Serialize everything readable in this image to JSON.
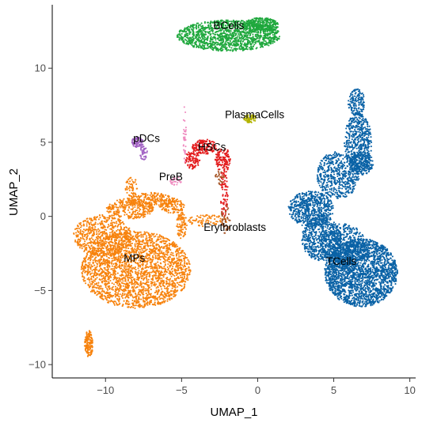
{
  "chart_data": {
    "type": "scatter",
    "title": "",
    "xlabel": "UMAP_1",
    "ylabel": "UMAP_2",
    "xlim": [
      -13.5,
      10.8
    ],
    "ylim": [
      -10.9,
      14.6
    ],
    "x_ticks": [
      -10,
      -5,
      0,
      5,
      10
    ],
    "y_ticks": [
      -10,
      -5,
      0,
      5,
      10
    ],
    "x_tick_labels": [
      "−10",
      "−5",
      "0",
      "5",
      "10"
    ],
    "y_tick_labels": [
      "−10",
      "−5",
      "0",
      "5",
      "10"
    ],
    "grid": false,
    "legend": "none",
    "series": [
      {
        "label_text": "BCells",
        "color": "#1fa83d",
        "label_pos": [
          -1.9,
          12.9
        ],
        "regions": [
          {
            "cx": -1.9,
            "cy": 12.2,
            "rx": 3.4,
            "ry": 1.05,
            "n": 1300
          },
          {
            "cx": 0.2,
            "cy": 12.9,
            "rx": 1.2,
            "ry": 0.5,
            "n": 300
          }
        ]
      },
      {
        "label_text": "TCells",
        "color": "#0a62a6",
        "label_pos": [
          5.5,
          -3.0
        ],
        "regions": [
          {
            "cx": 6.5,
            "cy": 7.7,
            "rx": 0.55,
            "ry": 0.9,
            "n": 150
          },
          {
            "cx": 6.6,
            "cy": 5.0,
            "rx": 0.9,
            "ry": 2.0,
            "n": 500
          },
          {
            "cx": 5.3,
            "cy": 2.8,
            "rx": 1.4,
            "ry": 1.6,
            "n": 550
          },
          {
            "cx": 6.8,
            "cy": 3.6,
            "rx": 0.8,
            "ry": 0.8,
            "n": 200
          },
          {
            "cx": 3.5,
            "cy": 0.5,
            "rx": 1.5,
            "ry": 1.2,
            "n": 600
          },
          {
            "cx": 4.2,
            "cy": -1.5,
            "rx": 1.3,
            "ry": 1.5,
            "n": 600
          },
          {
            "cx": 6.8,
            "cy": -3.8,
            "rx": 2.4,
            "ry": 2.3,
            "n": 2200
          },
          {
            "cx": 5.6,
            "cy": -2.0,
            "rx": 1.5,
            "ry": 1.5,
            "n": 500
          }
        ]
      },
      {
        "label_text": "MPs",
        "color": "#f7830e",
        "label_pos": [
          -8.1,
          -2.8
        ],
        "regions": [
          {
            "cx": -8.0,
            "cy": -3.6,
            "rx": 3.6,
            "ry": 2.6,
            "n": 2400
          },
          {
            "cx": -10.2,
            "cy": -1.3,
            "rx": 1.9,
            "ry": 1.4,
            "n": 600
          },
          {
            "cx": -8.4,
            "cy": 0.5,
            "rx": 1.6,
            "ry": 0.7,
            "n": 300
          },
          {
            "cx": -7.0,
            "cy": 1.1,
            "rx": 1.6,
            "ry": 0.5,
            "n": 220
          },
          {
            "cx": -5.6,
            "cy": 0.7,
            "rx": 0.8,
            "ry": 0.5,
            "n": 120
          },
          {
            "cx": -5.0,
            "cy": -0.6,
            "rx": 0.35,
            "ry": 0.9,
            "n": 90
          },
          {
            "cx": -3.3,
            "cy": -0.3,
            "rx": 1.3,
            "ry": 0.4,
            "n": 80
          },
          {
            "cx": -8.3,
            "cy": 2.0,
            "rx": 0.4,
            "ry": 0.7,
            "n": 50
          },
          {
            "cx": -11.1,
            "cy": -8.6,
            "rx": 0.28,
            "ry": 0.9,
            "n": 140
          }
        ]
      },
      {
        "label_text": "pDCs",
        "color": "#a262c4",
        "label_pos": [
          -7.3,
          5.3
        ],
        "regions": [
          {
            "cx": -7.9,
            "cy": 5.0,
            "rx": 0.4,
            "ry": 0.35,
            "n": 90
          },
          {
            "cx": -7.5,
            "cy": 4.3,
            "rx": 0.25,
            "ry": 0.5,
            "n": 40
          }
        ]
      },
      {
        "label_text": "PlasmaCells",
        "color": "#b3b300",
        "label_pos": [
          -0.2,
          6.9
        ],
        "regions": [
          {
            "cx": -0.5,
            "cy": 6.6,
            "rx": 0.4,
            "ry": 0.3,
            "n": 60
          }
        ]
      },
      {
        "label_text": "HSCs",
        "color": "#e31b1c",
        "label_pos": [
          -3.0,
          4.7
        ],
        "regions": [
          {
            "cx": -3.5,
            "cy": 4.7,
            "rx": 0.8,
            "ry": 0.5,
            "n": 150
          },
          {
            "cx": -2.3,
            "cy": 3.8,
            "rx": 0.5,
            "ry": 0.9,
            "n": 130
          },
          {
            "cx": -4.3,
            "cy": 3.8,
            "rx": 0.5,
            "ry": 0.6,
            "n": 90
          },
          {
            "cx": -2.2,
            "cy": 1.5,
            "rx": 0.25,
            "ry": 1.5,
            "n": 70
          }
        ]
      },
      {
        "label_text": "PreB",
        "color": "#ef8bbf",
        "label_pos": [
          -5.7,
          2.7
        ],
        "regions": [
          {
            "cx": -4.8,
            "cy": 5.5,
            "rx": 0.1,
            "ry": 2.0,
            "n": 40
          },
          {
            "cx": -5.4,
            "cy": 2.4,
            "rx": 0.4,
            "ry": 0.3,
            "n": 30
          }
        ]
      },
      {
        "label_text": "Erythroblasts",
        "color": "#a65628",
        "label_pos": [
          -1.5,
          -0.7
        ],
        "regions": [
          {
            "cx": -2.1,
            "cy": -0.2,
            "rx": 0.3,
            "ry": 1.0,
            "n": 45
          },
          {
            "cx": -2.5,
            "cy": 2.6,
            "rx": 0.3,
            "ry": 0.5,
            "n": 25
          }
        ]
      }
    ]
  }
}
